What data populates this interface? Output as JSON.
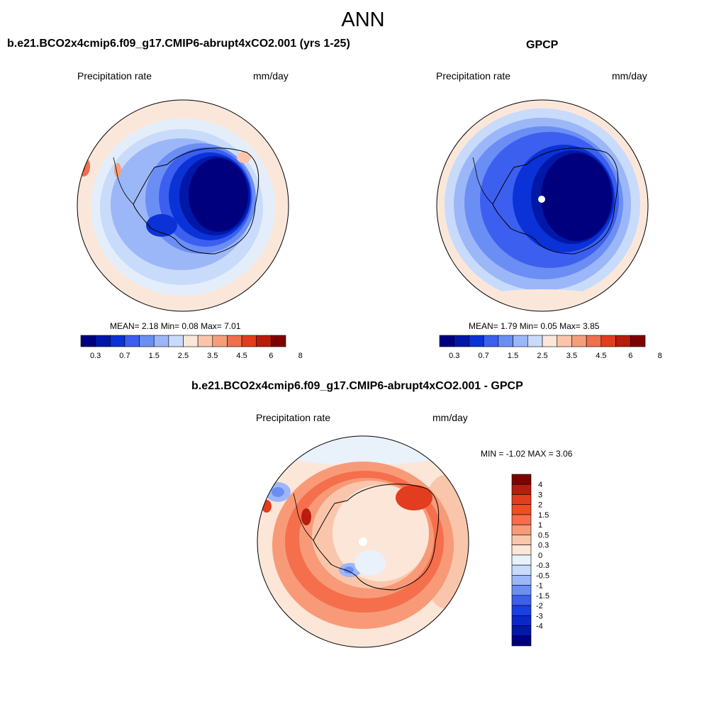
{
  "title": "ANN",
  "panels": [
    {
      "title": "b.e21.BCO2x4cmip6.f09_g17.CMIP6-abrupt4xCO2.001 (yrs 1-25)",
      "left_label": "Precipitation rate",
      "right_label": "mm/day",
      "stats": {
        "text": "MEAN=   2.18  Min=    0.08  Max=    7.01",
        "mean": 2.18,
        "min": 0.08,
        "max": 7.01
      }
    },
    {
      "title": "GPCP",
      "left_label": "Precipitation rate",
      "right_label": "mm/day",
      "stats": {
        "text": "MEAN=   1.79  Min=    0.05  Max=    3.85",
        "mean": 1.79,
        "min": 0.05,
        "max": 3.85
      }
    },
    {
      "title": "b.e21.BCO2x4cmip6.f09_g17.CMIP6-abrupt4xCO2.001 - GPCP",
      "left_label": "Precipitation rate",
      "right_label": "mm/day",
      "stats": {
        "text": "MIN =  -1.02 MAX =   3.06",
        "min": -1.02,
        "max": 3.06
      }
    }
  ],
  "colorbars": {
    "field": {
      "colors": [
        "#00007f",
        "#0018a8",
        "#0a32d6",
        "#3c5fef",
        "#6b8ef5",
        "#9cb7f8",
        "#c8dbfb",
        "#fbe7da",
        "#fac5ab",
        "#f59e7c",
        "#ef6f4e",
        "#e13d1e",
        "#b81c0c",
        "#7f0000"
      ],
      "labels": [
        "0.3",
        "0.7",
        "1.5",
        "2.5",
        "3.5",
        "4.5",
        "6",
        "8"
      ]
    },
    "diff": {
      "colors": [
        "#7f0000",
        "#b81c0c",
        "#e13d1e",
        "#ef4d23",
        "#f56f4c",
        "#f89a77",
        "#fac6ab",
        "#fbe6d8",
        "#e9f1fb",
        "#c8dbfb",
        "#9cb7f8",
        "#6b8ef5",
        "#3c5fef",
        "#1a3fe2",
        "#0a28c8",
        "#0018a8",
        "#00007f"
      ],
      "labels": [
        "4",
        "3",
        "2",
        "1.5",
        "1",
        "0.5",
        "0.3",
        "0",
        "-0.3",
        "-0.5",
        "-1",
        "-1.5",
        "-2",
        "-3",
        "-4"
      ]
    }
  }
}
